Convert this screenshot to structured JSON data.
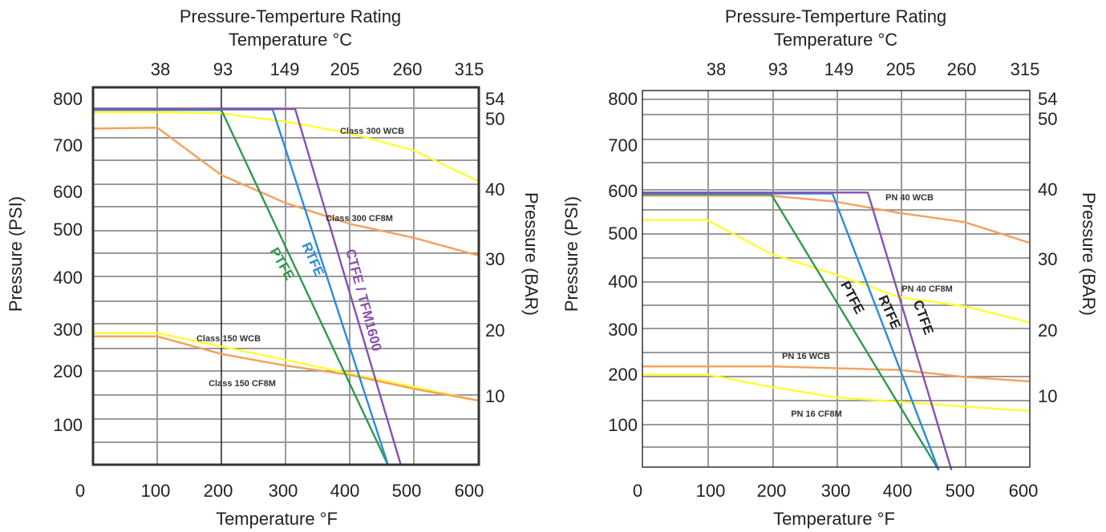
{
  "chart_data": [
    {
      "type": "line",
      "title": "Pressure-Temperture Rating",
      "top_axis_label": "Temperature °C",
      "top_ticks": [
        "38",
        "93",
        "149",
        "205",
        "260",
        "315"
      ],
      "xlabel": "Temperature °F",
      "ylabel": "Pressure (PSI)",
      "right_axis_label": "Pressure (BAR)",
      "x_ticks": [
        "0",
        "100",
        "200",
        "300",
        "400",
        "500",
        "600"
      ],
      "y_ticks": [
        "100",
        "200",
        "300",
        "400",
        "500",
        "600",
        "700",
        "800"
      ],
      "right_ticks": [
        "10",
        "20",
        "30",
        "40",
        "50",
        "54"
      ],
      "xlim": [
        0,
        600
      ],
      "ylim": [
        0,
        800
      ],
      "grid": true,
      "series": [
        {
          "name": "Class 300 WCB",
          "color": "#ffff33",
          "x": [
            0,
            100,
            200,
            300,
            400,
            500,
            600
          ],
          "y": [
            760,
            760,
            758,
            740,
            715,
            678,
            612
          ]
        },
        {
          "name": "Class 300 CF8M",
          "color": "#f5a05a",
          "x": [
            0,
            100,
            200,
            300,
            400,
            500,
            600
          ],
          "y": [
            725,
            727,
            625,
            565,
            520,
            490,
            452
          ]
        },
        {
          "name": "Class 150 WCB",
          "color": "#ffff33",
          "x": [
            0,
            100,
            600
          ],
          "y": [
            285,
            285,
            140
          ]
        },
        {
          "name": "Class 150 CF8M",
          "color": "#f5a05a",
          "x": [
            0,
            100,
            200,
            300,
            400,
            500,
            600
          ],
          "y": [
            278,
            278,
            240,
            215,
            195,
            165,
            140
          ]
        },
        {
          "name": "PTFE",
          "color": "#2e9a4e",
          "x": [
            0,
            200,
            460
          ],
          "y": [
            765,
            765,
            0
          ]
        },
        {
          "name": "RTFE",
          "color": "#2a8ae0",
          "x": [
            0,
            280,
            460
          ],
          "y": [
            766,
            766,
            0
          ]
        },
        {
          "name": "CTFE / TFM1600",
          "color": "#8a4fb0",
          "x": [
            0,
            315,
            480
          ],
          "y": [
            767,
            767,
            0
          ]
        }
      ]
    },
    {
      "type": "line",
      "title": "Pressure-Temperture Rating",
      "top_axis_label": "Temperature °C",
      "top_ticks": [
        "38",
        "93",
        "149",
        "205",
        "260",
        "315"
      ],
      "xlabel": "Temperature °F",
      "ylabel": "Pressure (PSI)",
      "right_axis_label": "Pressure (BAR)",
      "x_ticks": [
        "0",
        "100",
        "200",
        "300",
        "400",
        "500",
        "600"
      ],
      "y_ticks": [
        "100",
        "200",
        "300",
        "400",
        "500",
        "600",
        "700",
        "800"
      ],
      "right_ticks": [
        "10",
        "20",
        "30",
        "40",
        "50",
        "54"
      ],
      "xlim": [
        0,
        600
      ],
      "ylim": [
        0,
        800
      ],
      "grid": true,
      "series": [
        {
          "name": "PN 40 WCB",
          "color": "#f5a05a",
          "x": [
            0,
            200,
            300,
            400,
            500,
            600
          ],
          "y": [
            603,
            603,
            590,
            565,
            545,
            500
          ]
        },
        {
          "name": "PN 40 CF8M",
          "color": "#ffff33",
          "x": [
            0,
            100,
            200,
            300,
            400,
            500,
            600
          ],
          "y": [
            550,
            550,
            475,
            430,
            380,
            360,
            325
          ]
        },
        {
          "name": "PN 16 WCB",
          "color": "#f5a05a",
          "x": [
            0,
            200,
            400,
            500,
            600
          ],
          "y": [
            228,
            228,
            220,
            205,
            195
          ]
        },
        {
          "name": "PN 16 CF8M",
          "color": "#ffff33",
          "x": [
            0,
            100,
            200,
            300,
            400,
            500,
            600
          ],
          "y": [
            210,
            210,
            183,
            160,
            150,
            140,
            130
          ]
        },
        {
          "name": "PTFE",
          "color": "#2e9a4e",
          "x": [
            0,
            200,
            460
          ],
          "y": [
            606,
            606,
            0
          ]
        },
        {
          "name": "RTFE",
          "color": "#2a8ae0",
          "x": [
            0,
            295,
            460
          ],
          "y": [
            608,
            608,
            0
          ]
        },
        {
          "name": "CTFE",
          "color": "#8a4fb0",
          "x": [
            0,
            350,
            480
          ],
          "y": [
            610,
            610,
            0
          ]
        }
      ]
    }
  ]
}
